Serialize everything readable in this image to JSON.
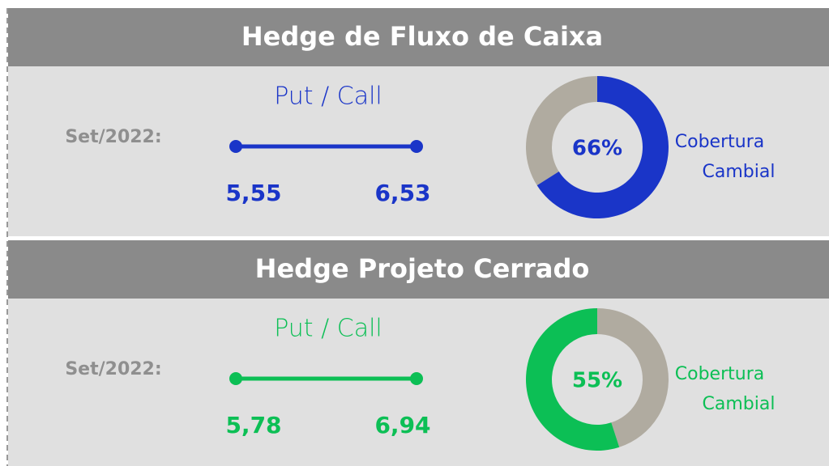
{
  "panels": [
    {
      "title": "Hedge de Fluxo de Caixa",
      "date_label": "Set/2022:",
      "range_label": "Put / Call",
      "put": "5,55",
      "call": "6,53",
      "chart_data": {
        "type": "donut",
        "value": 66,
        "value_label": "66%",
        "caption": "Cobertura Cambial",
        "color": "#1a35c8",
        "rest_color": "#b0aba0",
        "direction": "clockwise"
      }
    },
    {
      "title": "Hedge Projeto Cerrado",
      "date_label": "Set/2022:",
      "range_label": "Put / Call",
      "put": "5,78",
      "call": "6,94",
      "chart_data": {
        "type": "donut",
        "value": 55,
        "value_label": "55%",
        "caption": "Cobertura Cambial",
        "color": "#0cbf55",
        "rest_color": "#b0aba0",
        "direction": "counterclockwise"
      }
    }
  ]
}
